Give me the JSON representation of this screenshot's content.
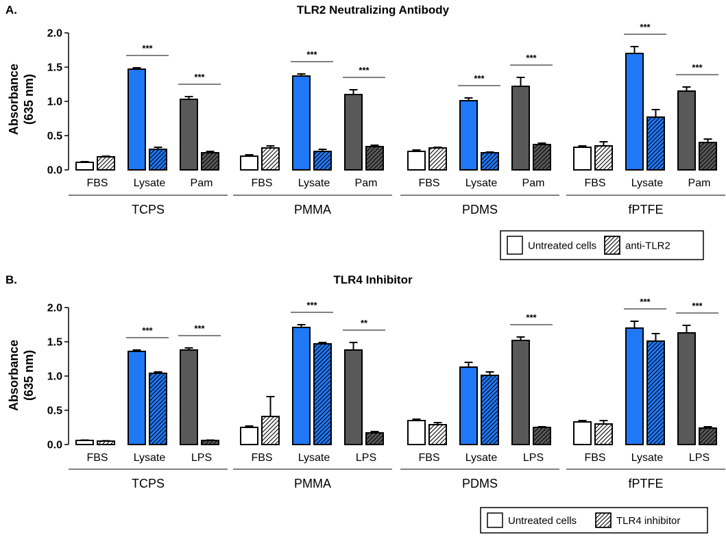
{
  "chart_data": [
    {
      "type": "bar",
      "panel_label": "A.",
      "title": "TLR2 Neutralizing Antibody",
      "ylabel": [
        "Absorbance",
        "(635 nm)"
      ],
      "ylim": [
        0,
        2.0
      ],
      "yticks": [
        "0.0",
        "0.5",
        "1.0",
        "1.5",
        "2.0"
      ],
      "groups": [
        {
          "surface": "TCPS",
          "conditions": [
            "FBS",
            "Lysate",
            "Pam"
          ],
          "untreated": [
            0.11,
            1.47,
            1.03
          ],
          "untreated_err": [
            0.01,
            0.02,
            0.04
          ],
          "treated": [
            0.19,
            0.3,
            0.25
          ],
          "treated_err": [
            0.01,
            0.03,
            0.02
          ],
          "significance": [
            "",
            "***",
            "***"
          ]
        },
        {
          "surface": "PMMA",
          "conditions": [
            "FBS",
            "Lysate",
            "Pam"
          ],
          "untreated": [
            0.2,
            1.37,
            1.1
          ],
          "untreated_err": [
            0.02,
            0.03,
            0.07
          ],
          "treated": [
            0.32,
            0.27,
            0.34
          ],
          "treated_err": [
            0.03,
            0.03,
            0.02
          ],
          "significance": [
            "",
            "***",
            "***"
          ]
        },
        {
          "surface": "PDMS",
          "conditions": [
            "FBS",
            "Lysate",
            "Pam"
          ],
          "untreated": [
            0.27,
            1.01,
            1.22
          ],
          "untreated_err": [
            0.02,
            0.04,
            0.13
          ],
          "treated": [
            0.32,
            0.25,
            0.37
          ],
          "treated_err": [
            0.01,
            0.01,
            0.02
          ],
          "significance": [
            "",
            "***",
            "***"
          ]
        },
        {
          "surface": "fPTFE",
          "conditions": [
            "FBS",
            "Lysate",
            "Pam"
          ],
          "untreated": [
            0.33,
            1.7,
            1.15
          ],
          "untreated_err": [
            0.02,
            0.1,
            0.06
          ],
          "treated": [
            0.35,
            0.77,
            0.4
          ],
          "treated_err": [
            0.06,
            0.11,
            0.05
          ],
          "significance": [
            "",
            "***",
            "***"
          ]
        }
      ],
      "legend": {
        "position": "bottom-right",
        "untreated_label": "Untreated cells",
        "treated_label": "anti-TLR2"
      }
    },
    {
      "type": "bar",
      "panel_label": "B.",
      "title": "TLR4 Inhibitor",
      "ylabel": [
        "Absorbance",
        "(635 nm)"
      ],
      "ylim": [
        0,
        2.0
      ],
      "yticks": [
        "0.0",
        "0.5",
        "1.0",
        "1.5",
        "2.0"
      ],
      "groups": [
        {
          "surface": "TCPS",
          "conditions": [
            "FBS",
            "Lysate",
            "LPS"
          ],
          "untreated": [
            0.06,
            1.36,
            1.38
          ],
          "untreated_err": [
            0.005,
            0.02,
            0.03
          ],
          "treated": [
            0.05,
            1.04,
            0.06
          ],
          "treated_err": [
            0.005,
            0.02,
            0.005
          ],
          "significance": [
            "",
            "***",
            "***"
          ]
        },
        {
          "surface": "PMMA",
          "conditions": [
            "FBS",
            "Lysate",
            "LPS"
          ],
          "untreated": [
            0.25,
            1.71,
            1.38
          ],
          "untreated_err": [
            0.02,
            0.04,
            0.11
          ],
          "treated": [
            0.41,
            1.47,
            0.17
          ],
          "treated_err": [
            0.29,
            0.02,
            0.02
          ],
          "significance": [
            "",
            "***",
            "**"
          ]
        },
        {
          "surface": "PDMS",
          "conditions": [
            "FBS",
            "Lysate",
            "LPS"
          ],
          "untreated": [
            0.35,
            1.13,
            1.52
          ],
          "untreated_err": [
            0.02,
            0.07,
            0.05
          ],
          "treated": [
            0.29,
            1.01,
            0.25
          ],
          "treated_err": [
            0.03,
            0.05,
            0.01
          ],
          "significance": [
            "",
            "",
            "***"
          ]
        },
        {
          "surface": "fPTFE",
          "conditions": [
            "FBS",
            "Lysate",
            "LPS"
          ],
          "untreated": [
            0.33,
            1.7,
            1.63
          ],
          "untreated_err": [
            0.02,
            0.1,
            0.11
          ],
          "treated": [
            0.3,
            1.51,
            0.24
          ],
          "treated_err": [
            0.05,
            0.11,
            0.02
          ],
          "significance": [
            "",
            "***",
            "***"
          ]
        }
      ],
      "legend": {
        "position": "bottom-right",
        "untreated_label": "Untreated cells",
        "treated_label": "TLR4 inhibitor"
      }
    }
  ],
  "colors": {
    "fbs": "#ffffff",
    "lysate": "#1f78f5",
    "ligand": "#595959",
    "outline": "#000000"
  }
}
